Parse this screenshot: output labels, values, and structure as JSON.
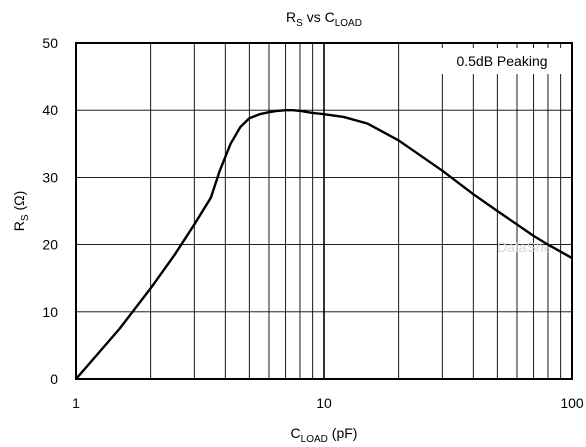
{
  "chart_data": {
    "type": "line",
    "title": {
      "main": "R",
      "main_sub": "S",
      "mid": " vs C",
      "mid_sub": "LOAD"
    },
    "xlabel": {
      "main": "C",
      "sub": "LOAD",
      "suffix": " (pF)"
    },
    "ylabel": {
      "main": "R",
      "sub": "S",
      "suffix": " (Ω)"
    },
    "x_scale": "log",
    "xlim": [
      1,
      100
    ],
    "ylim": [
      0,
      50
    ],
    "x_tick_labels": [
      "1",
      "10",
      "100"
    ],
    "x_ticks": [
      1,
      10,
      100
    ],
    "y_ticks": [
      0,
      10,
      20,
      30,
      40,
      50
    ],
    "y_tick_labels": [
      "0",
      "10",
      "20",
      "30",
      "40",
      "50"
    ],
    "grid": true,
    "annotation": "0.5dB Peaking",
    "watermark": "DataShe",
    "series": [
      {
        "x": [
          1,
          1.5,
          2,
          2.5,
          3,
          3.5,
          3.8,
          4.2,
          4.6,
          5,
          5.5,
          6,
          6.5,
          7,
          7.5,
          8,
          9,
          10,
          12,
          15,
          20,
          30,
          40,
          50,
          60,
          70,
          80,
          100
        ],
        "y": [
          0,
          7.5,
          13.5,
          18.5,
          23,
          27,
          31,
          35,
          37.5,
          38.8,
          39.4,
          39.7,
          39.9,
          40.0,
          40.0,
          39.9,
          39.6,
          39.4,
          39.0,
          38.0,
          35.5,
          31,
          27.5,
          25,
          23,
          21.3,
          20,
          18
        ]
      }
    ]
  }
}
